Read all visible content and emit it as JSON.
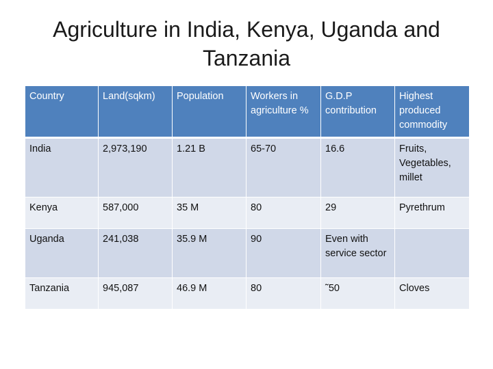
{
  "title": {
    "line1": "Agriculture in India, Kenya, Uganda and",
    "line2": "Tanzania"
  },
  "table": {
    "headers": [
      "Country",
      "Land(sqkm)",
      "Population",
      "Workers in agriculture %",
      "G.D.P contribution",
      "Highest produced commodity"
    ],
    "rows": [
      [
        "India",
        "2,973,190",
        "1.21 B",
        "65-70",
        "16.6",
        "Fruits, Vegetables, millet"
      ],
      [
        "Kenya",
        "587,000",
        "35 M",
        "80",
        "29",
        "Pyrethrum"
      ],
      [
        "Uganda",
        "241,038",
        "35.9 M",
        "90",
        "Even with service sector",
        ""
      ],
      [
        "Tanzania",
        "945,087",
        "46.9 M",
        "80",
        "˜50",
        "Cloves"
      ]
    ]
  },
  "colors": {
    "header_bg": "#4f81bd",
    "band_dark": "#d0d8e8",
    "band_light": "#e9edf4"
  }
}
